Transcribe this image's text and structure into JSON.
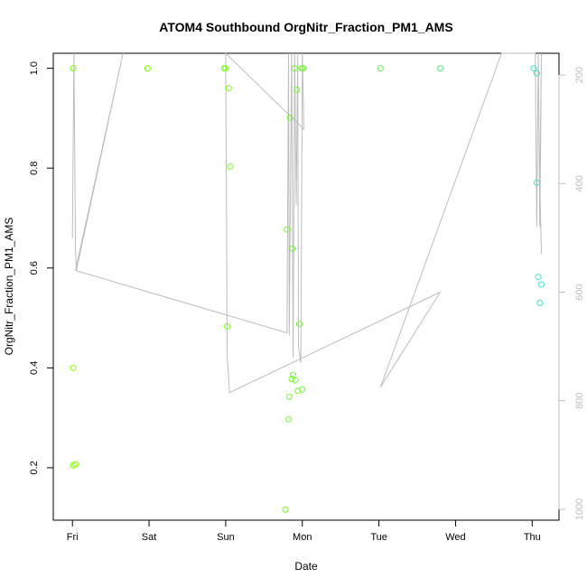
{
  "chart_data": {
    "type": "scatter",
    "title": "ATOM4 Southbound OrgNitr_Fraction_PM1_AMS",
    "xlabel": "Date",
    "ylabel": "OrgNitr_Fraction_PM1_AMS",
    "x_ticks": [
      "Fri",
      "Sat",
      "Sun",
      "Mon",
      "Tue",
      "Wed",
      "Thu"
    ],
    "xlim_days": [
      -0.25,
      6.35
    ],
    "y_ticks": [
      "0.2",
      "0.4",
      "0.6",
      "0.8",
      "1.0"
    ],
    "ylim": [
      0.095,
      1.03
    ],
    "right_axis": {
      "ticks": [
        "200",
        "400",
        "600",
        "800",
        "1000"
      ],
      "range": [
        1020,
        160
      ],
      "color": "#bdbdbd"
    },
    "colors": {
      "grad_start": "#7fff00",
      "grad_end": "#40e0d0",
      "line": "#bdbdbd"
    },
    "points": [
      {
        "day": 0.01,
        "value": 1.0
      },
      {
        "day": 0.01,
        "value": 0.4
      },
      {
        "day": 0.01,
        "value": 0.205
      },
      {
        "day": 0.04,
        "value": 0.207
      },
      {
        "day": 0.98,
        "value": 1.0
      },
      {
        "day": 1.98,
        "value": 1.0
      },
      {
        "day": 2.0,
        "value": 1.0
      },
      {
        "day": 2.02,
        "value": 0.483
      },
      {
        "day": 2.04,
        "value": 0.96
      },
      {
        "day": 2.06,
        "value": 0.803
      },
      {
        "day": 2.78,
        "value": 0.116
      },
      {
        "day": 2.8,
        "value": 0.677
      },
      {
        "day": 2.82,
        "value": 0.297
      },
      {
        "day": 2.83,
        "value": 0.342
      },
      {
        "day": 2.84,
        "value": 0.901
      },
      {
        "day": 2.86,
        "value": 0.378
      },
      {
        "day": 2.87,
        "value": 0.639
      },
      {
        "day": 2.88,
        "value": 0.386
      },
      {
        "day": 2.9,
        "value": 1.0
      },
      {
        "day": 2.91,
        "value": 0.375
      },
      {
        "day": 2.93,
        "value": 0.957
      },
      {
        "day": 2.94,
        "value": 0.354
      },
      {
        "day": 2.96,
        "value": 0.488
      },
      {
        "day": 2.99,
        "value": 1.0
      },
      {
        "day": 3.0,
        "value": 0.357
      },
      {
        "day": 3.01,
        "value": 1.0
      },
      {
        "day": 4.02,
        "value": 1.0
      },
      {
        "day": 4.8,
        "value": 1.0
      },
      {
        "day": 6.02,
        "value": 1.0
      },
      {
        "day": 6.06,
        "value": 0.99
      },
      {
        "day": 6.06,
        "value": 0.771
      },
      {
        "day": 6.08,
        "value": 0.582
      },
      {
        "day": 6.1,
        "value": 0.53
      },
      {
        "day": 6.12,
        "value": 0.567
      }
    ],
    "pressure_trace": [
      {
        "day": 0.0,
        "value": 500
      },
      {
        "day": 0.02,
        "value": 160
      },
      {
        "day": 0.04,
        "value": 520
      },
      {
        "day": 0.05,
        "value": 560
      },
      {
        "day": 0.66,
        "value": 160
      },
      {
        "day": 0.04,
        "value": 560
      },
      {
        "day": 2.8,
        "value": 675
      },
      {
        "day": 2.82,
        "value": 160
      },
      {
        "day": 2.83,
        "value": 680
      },
      {
        "day": 2.86,
        "value": 160
      },
      {
        "day": 2.88,
        "value": 720
      },
      {
        "day": 2.9,
        "value": 160
      },
      {
        "day": 2.92,
        "value": 440
      },
      {
        "day": 2.94,
        "value": 160
      },
      {
        "day": 2.95,
        "value": 700
      },
      {
        "day": 2.98,
        "value": 730
      },
      {
        "day": 3.0,
        "value": 160
      },
      {
        "day": 3.02,
        "value": 300
      },
      {
        "day": 2.0,
        "value": 160
      },
      {
        "day": 2.02,
        "value": 720
      },
      {
        "day": 2.05,
        "value": 785
      },
      {
        "day": 4.8,
        "value": 600
      },
      {
        "day": 4.02,
        "value": 775
      },
      {
        "day": 4.8,
        "value": 600
      },
      {
        "day": 4.02,
        "value": 775
      },
      {
        "day": 5.6,
        "value": 160
      },
      {
        "day": 6.04,
        "value": 160
      },
      {
        "day": 6.06,
        "value": 480
      },
      {
        "day": 6.08,
        "value": 160
      },
      {
        "day": 6.1,
        "value": 480
      },
      {
        "day": 6.12,
        "value": 160
      },
      {
        "day": 6.1,
        "value": 400
      },
      {
        "day": 6.12,
        "value": 530
      }
    ]
  }
}
